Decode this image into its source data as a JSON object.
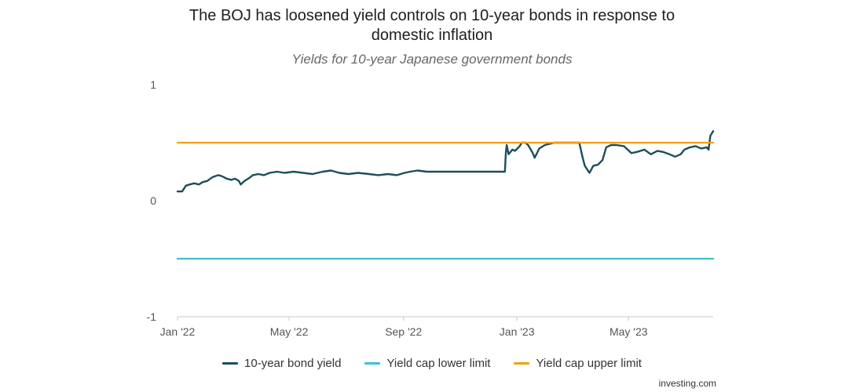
{
  "title": "The BOJ has loosened yield controls on 10-year bonds in response to domestic inflation",
  "subtitle": "Yields for 10-year Japanese government bonds",
  "source": "investing.com",
  "chart_data": {
    "type": "line",
    "title": "The BOJ has loosened yield controls on 10-year bonds in response to domestic inflation",
    "subtitle": "Yields for 10-year Japanese government bonds",
    "xlabel": "",
    "ylabel": "",
    "xlim": [
      "2022-01-01",
      "2023-07-31"
    ],
    "ylim": [
      -1,
      1
    ],
    "y_ticks": [
      {
        "value": 1,
        "label": "1"
      },
      {
        "value": 0,
        "label": "0"
      },
      {
        "value": -1,
        "label": "-1"
      }
    ],
    "x_ticks": [
      {
        "date": "2022-01-01",
        "label": "Jan '22"
      },
      {
        "date": "2022-05-01",
        "label": "May '22"
      },
      {
        "date": "2022-09-01",
        "label": "Sep '22"
      },
      {
        "date": "2023-01-01",
        "label": "Jan '23"
      },
      {
        "date": "2023-05-01",
        "label": "May '23"
      }
    ],
    "grid": false,
    "legend_position": "bottom",
    "series": [
      {
        "name": "10-year bond yield",
        "color": "#1d4e5a",
        "points": [
          [
            "2022-01-01",
            0.08
          ],
          [
            "2022-01-06",
            0.08
          ],
          [
            "2022-01-10",
            0.13
          ],
          [
            "2022-01-14",
            0.14
          ],
          [
            "2022-01-19",
            0.15
          ],
          [
            "2022-01-24",
            0.14
          ],
          [
            "2022-01-28",
            0.16
          ],
          [
            "2022-02-02",
            0.17
          ],
          [
            "2022-02-07",
            0.2
          ],
          [
            "2022-02-10",
            0.21
          ],
          [
            "2022-02-14",
            0.22
          ],
          [
            "2022-02-18",
            0.21
          ],
          [
            "2022-02-23",
            0.19
          ],
          [
            "2022-02-28",
            0.18
          ],
          [
            "2022-03-04",
            0.19
          ],
          [
            "2022-03-08",
            0.17
          ],
          [
            "2022-03-10",
            0.14
          ],
          [
            "2022-03-14",
            0.17
          ],
          [
            "2022-03-18",
            0.19
          ],
          [
            "2022-03-23",
            0.22
          ],
          [
            "2022-03-29",
            0.23
          ],
          [
            "2022-04-04",
            0.22
          ],
          [
            "2022-04-10",
            0.24
          ],
          [
            "2022-04-18",
            0.25
          ],
          [
            "2022-04-26",
            0.24
          ],
          [
            "2022-05-06",
            0.25
          ],
          [
            "2022-05-16",
            0.24
          ],
          [
            "2022-05-26",
            0.23
          ],
          [
            "2022-06-06",
            0.25
          ],
          [
            "2022-06-15",
            0.26
          ],
          [
            "2022-06-24",
            0.24
          ],
          [
            "2022-07-04",
            0.23
          ],
          [
            "2022-07-14",
            0.24
          ],
          [
            "2022-07-26",
            0.23
          ],
          [
            "2022-08-05",
            0.22
          ],
          [
            "2022-08-15",
            0.23
          ],
          [
            "2022-08-25",
            0.22
          ],
          [
            "2022-09-02",
            0.24
          ],
          [
            "2022-09-08",
            0.25
          ],
          [
            "2022-09-16",
            0.26
          ],
          [
            "2022-09-26",
            0.25
          ],
          [
            "2022-10-06",
            0.25
          ],
          [
            "2022-10-18",
            0.25
          ],
          [
            "2022-11-01",
            0.25
          ],
          [
            "2022-11-15",
            0.25
          ],
          [
            "2022-12-01",
            0.25
          ],
          [
            "2022-12-19",
            0.25
          ],
          [
            "2022-12-20",
            0.41
          ],
          [
            "2022-12-21",
            0.48
          ],
          [
            "2022-12-23",
            0.4
          ],
          [
            "2022-12-27",
            0.44
          ],
          [
            "2022-12-30",
            0.43
          ],
          [
            "2023-01-04",
            0.47
          ],
          [
            "2023-01-06",
            0.5
          ],
          [
            "2023-01-10",
            0.5
          ],
          [
            "2023-01-13",
            0.48
          ],
          [
            "2023-01-18",
            0.41
          ],
          [
            "2023-01-20",
            0.37
          ],
          [
            "2023-01-25",
            0.45
          ],
          [
            "2023-01-31",
            0.48
          ],
          [
            "2023-02-10",
            0.5
          ],
          [
            "2023-02-20",
            0.5
          ],
          [
            "2023-03-01",
            0.5
          ],
          [
            "2023-03-09",
            0.5
          ],
          [
            "2023-03-13",
            0.36
          ],
          [
            "2023-03-15",
            0.3
          ],
          [
            "2023-03-20",
            0.24
          ],
          [
            "2023-03-24",
            0.3
          ],
          [
            "2023-03-29",
            0.31
          ],
          [
            "2023-04-03",
            0.35
          ],
          [
            "2023-04-07",
            0.46
          ],
          [
            "2023-04-12",
            0.48
          ],
          [
            "2023-04-18",
            0.48
          ],
          [
            "2023-04-26",
            0.47
          ],
          [
            "2023-05-04",
            0.41
          ],
          [
            "2023-05-10",
            0.42
          ],
          [
            "2023-05-18",
            0.44
          ],
          [
            "2023-05-25",
            0.4
          ],
          [
            "2023-06-01",
            0.43
          ],
          [
            "2023-06-07",
            0.42
          ],
          [
            "2023-06-14",
            0.4
          ],
          [
            "2023-06-20",
            0.38
          ],
          [
            "2023-06-26",
            0.4
          ],
          [
            "2023-06-30",
            0.44
          ],
          [
            "2023-07-06",
            0.46
          ],
          [
            "2023-07-12",
            0.47
          ],
          [
            "2023-07-18",
            0.45
          ],
          [
            "2023-07-24",
            0.46
          ],
          [
            "2023-07-26",
            0.44
          ],
          [
            "2023-07-28",
            0.56
          ],
          [
            "2023-07-31",
            0.6
          ]
        ]
      },
      {
        "name": "Yield cap lower limit",
        "color": "#3fbfcf",
        "points": [
          [
            "2022-01-01",
            -0.5
          ],
          [
            "2023-07-31",
            -0.5
          ]
        ]
      },
      {
        "name": "Yield cap upper limit",
        "color": "#f5a00a",
        "points": [
          [
            "2022-01-01",
            0.5
          ],
          [
            "2023-07-31",
            0.5
          ]
        ]
      }
    ]
  }
}
